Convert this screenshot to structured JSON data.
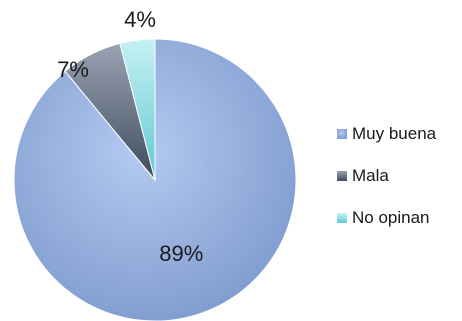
{
  "chart_data": {
    "type": "pie",
    "categories": [
      "Muy buena",
      "Mala",
      "No opinan"
    ],
    "values": [
      89,
      7,
      4
    ],
    "data_labels": [
      "89%",
      "7%",
      "4%"
    ],
    "colors": [
      "#8FAADC",
      "#4F5D72",
      "#8BDDE4"
    ],
    "legend_position": "right",
    "title": ""
  }
}
